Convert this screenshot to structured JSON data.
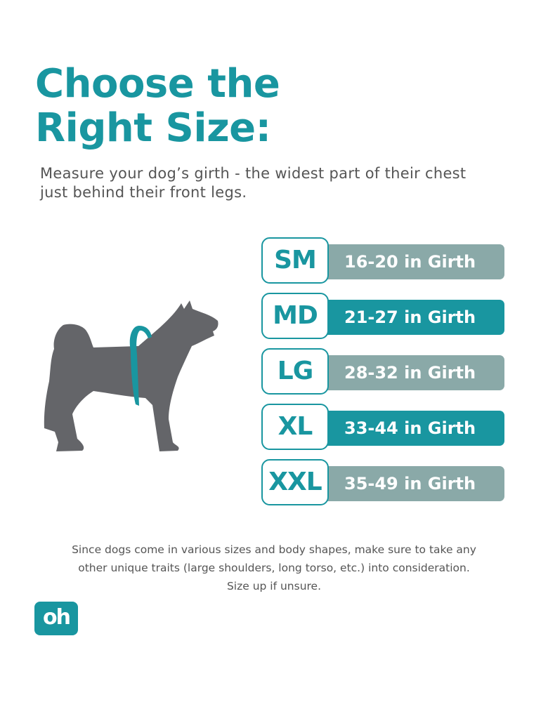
{
  "header": {
    "title_line1": "Choose the",
    "title_line2": "Right Size:",
    "subtitle": "Measure your dog’s girth - the widest part of their chest just behind their front legs."
  },
  "colors": {
    "accent": "#1996a0",
    "muted": "#8aa9a8",
    "dog": "#646569"
  },
  "sizes": [
    {
      "label": "SM",
      "range": "16-20 in Girth",
      "color": "#8aa9a8"
    },
    {
      "label": "MD",
      "range": "21-27 in Girth",
      "color": "#1996a0"
    },
    {
      "label": "LG",
      "range": "28-32 in Girth",
      "color": "#8aa9a8"
    },
    {
      "label": "XL",
      "range": "33-44 in Girth",
      "color": "#1996a0"
    },
    {
      "label": "XXL",
      "range": "35-49 in Girth",
      "color": "#8aa9a8"
    }
  ],
  "note": {
    "line1": "Since dogs come in various sizes and body shapes, make sure to take any",
    "line2": "other unique traits (large shoulders, long torso, etc.) into consideration.",
    "line3": "Size up if unsure."
  },
  "logo": {
    "text": "oh"
  }
}
